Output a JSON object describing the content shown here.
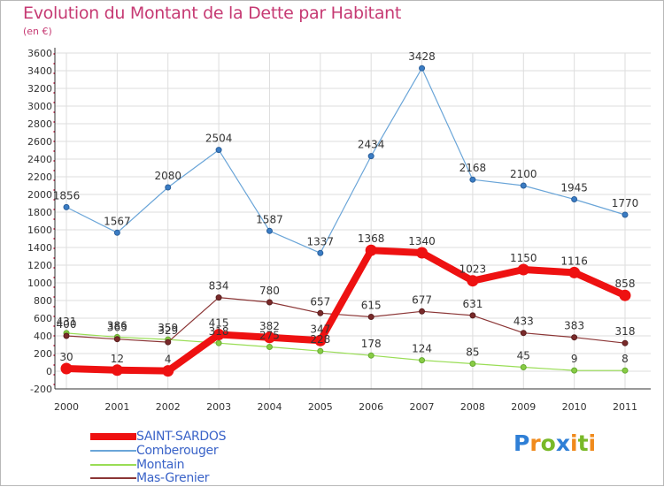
{
  "title": "Evolution du Montant de la Dette par Habitant",
  "subtitle": "(en €)",
  "logo": {
    "text": "Proxiti",
    "letters": [
      {
        "ch": "P",
        "color": "#2f7fd6"
      },
      {
        "ch": "r",
        "color": "#f08a1c"
      },
      {
        "ch": "o",
        "color": "#79b928"
      },
      {
        "ch": "x",
        "color": "#2f7fd6"
      },
      {
        "ch": "i",
        "color": "#f08a1c"
      },
      {
        "ch": "t",
        "color": "#79b928"
      },
      {
        "ch": "i",
        "color": "#f08a1c"
      }
    ]
  },
  "chart_data": {
    "type": "line",
    "title": "Evolution du Montant de la Dette par Habitant",
    "subtitle": "(en €)",
    "xlabel": "",
    "ylabel": "",
    "ylim": [
      -200,
      3600
    ],
    "yticks": [
      -200,
      0,
      200,
      400,
      600,
      800,
      1000,
      1200,
      1400,
      1600,
      1800,
      2000,
      2200,
      2400,
      2600,
      2800,
      3000,
      3200,
      3400,
      3600
    ],
    "grid": true,
    "legend_position": "bottom-left",
    "categories": [
      "2000",
      "2001",
      "2002",
      "2003",
      "2004",
      "2005",
      "2006",
      "2007",
      "2008",
      "2009",
      "2010",
      "2011"
    ],
    "series": [
      {
        "name": "SAINT-SARDOS",
        "color": "#ee1111",
        "values": [
          30,
          12,
          4,
          415,
          382,
          347,
          1368,
          1340,
          1023,
          1150,
          1116,
          858
        ]
      },
      {
        "name": "Comberouger",
        "color": "#6aa5d8",
        "values": [
          1856,
          1567,
          2080,
          2504,
          1587,
          1337,
          2434,
          3428,
          2168,
          2100,
          1945,
          1770
        ]
      },
      {
        "name": "Montain",
        "color": "#99dd55",
        "values": [
          431,
          386,
          359,
          318,
          275,
          228,
          178,
          124,
          85,
          45,
          9,
          8
        ]
      },
      {
        "name": "Mas-Grenier",
        "color": "#8b3535",
        "values": [
          400,
          363,
          329,
          834,
          780,
          657,
          615,
          677,
          631,
          433,
          383,
          318
        ]
      }
    ]
  }
}
